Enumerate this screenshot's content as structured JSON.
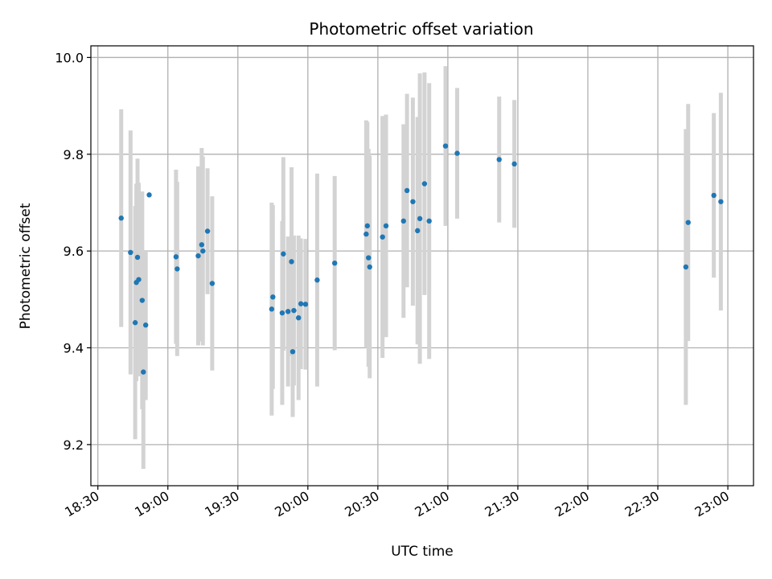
{
  "chart_data": {
    "type": "scatter",
    "title": "Photometric offset variation",
    "xlabel": "UTC time",
    "ylabel": "Photometric offset",
    "xlim": [
      "18:27",
      "23:11"
    ],
    "ylim": [
      9.115,
      10.024
    ],
    "x_ticks": [
      "18:30",
      "19:00",
      "19:30",
      "20:00",
      "20:30",
      "21:00",
      "21:30",
      "22:00",
      "22:30",
      "23:00"
    ],
    "y_ticks": [
      "9.2",
      "9.4",
      "9.6",
      "9.8",
      "10.0"
    ],
    "grid": true,
    "colors": {
      "point": "#1f77b4",
      "errorbar": "#d3d3d3",
      "grid": "#b0b0b0"
    },
    "series": [
      {
        "x": [
          "18:40",
          "18:44",
          "18:46",
          "18:46.5",
          "18:47",
          "18:47.5",
          "18:49",
          "18:49.5",
          "18:50.5",
          "18:52",
          "19:03.5",
          "19:04",
          "19:13",
          "19:14.5",
          "19:15",
          "19:17",
          "19:19",
          "19:44.5",
          "19:45",
          "19:49",
          "19:49.5",
          "19:51.5",
          "19:53",
          "19:53.5",
          "19:54",
          "19:56",
          "19:57",
          "19:59",
          "20:04",
          "20:11.5",
          "20:25",
          "20:25.5",
          "20:26",
          "20:26.5",
          "20:32",
          "20:33.5",
          "20:41",
          "20:42.5",
          "20:45",
          "20:47",
          "20:48",
          "20:50",
          "20:52",
          "20:59",
          "21:04",
          "21:22",
          "21:28.5",
          "22:42",
          "22:43",
          "22:54",
          "22:57"
        ],
        "y": [
          9.668,
          9.597,
          9.452,
          9.535,
          9.587,
          9.541,
          9.498,
          9.35,
          9.447,
          9.716,
          9.588,
          9.563,
          9.59,
          9.613,
          9.6,
          9.641,
          9.533,
          9.48,
          9.505,
          9.472,
          9.594,
          9.475,
          9.578,
          9.392,
          9.477,
          9.462,
          9.491,
          9.49,
          9.54,
          9.575,
          9.635,
          9.652,
          9.586,
          9.567,
          9.629,
          9.652,
          9.662,
          9.725,
          9.702,
          9.642,
          9.667,
          9.739,
          9.662,
          9.817,
          9.802,
          9.789,
          9.78,
          9.567,
          9.659,
          9.715,
          9.702
        ],
        "err": [
          0.225,
          0.252,
          0.241,
          0.204,
          0.204,
          0.2,
          0.225,
          0.2,
          0.155,
          0,
          0.18,
          0.18,
          0.185,
          0.2,
          0.195,
          0.13,
          0.18,
          0.22,
          0.19,
          0.19,
          0.2,
          0.155,
          0.195,
          0.135,
          0.155,
          0.17,
          0.135,
          0.135,
          0.22,
          0.18,
          0.235,
          0.215,
          0.225,
          0.23,
          0.25,
          0.23,
          0.2,
          0.2,
          0.215,
          0.235,
          0.3,
          0.23,
          0.285,
          0.165,
          0.135,
          0.13,
          0.132,
          0.285,
          0.245,
          0.17,
          0.225
        ]
      }
    ]
  }
}
